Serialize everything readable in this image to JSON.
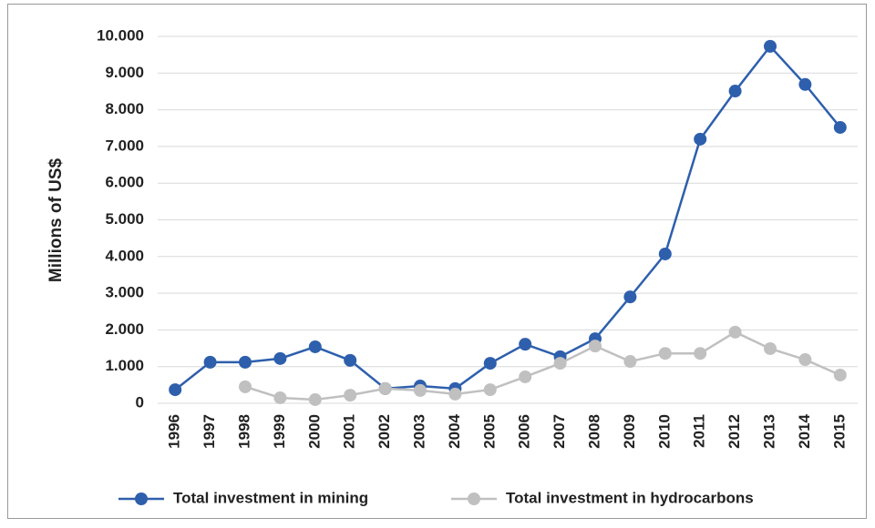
{
  "chart_data": {
    "type": "line",
    "y_label": "Millions of US$",
    "categories": [
      "1996",
      "1997",
      "1998",
      "1999",
      "2000",
      "2001",
      "2002",
      "2003",
      "2004",
      "2005",
      "2006",
      "2007",
      "2008",
      "2009",
      "2010",
      "2011",
      "2012",
      "2013",
      "2014",
      "2015"
    ],
    "series": [
      {
        "name": "Total investment in mining",
        "color": "#2e5fac",
        "values": [
          370,
          1120,
          1120,
          1220,
          1540,
          1170,
          400,
          470,
          400,
          1090,
          1610,
          1270,
          1760,
          2900,
          4070,
          7200,
          8510,
          9730,
          8690,
          7520
        ]
      },
      {
        "name": "Total investment in hydrocarbons",
        "color": "#c0c0c0",
        "values": [
          null,
          null,
          450,
          150,
          100,
          220,
          400,
          350,
          250,
          370,
          720,
          1090,
          1560,
          1140,
          1360,
          1360,
          1940,
          1490,
          1190,
          770
        ]
      }
    ],
    "ylim": [
      0,
      10000
    ],
    "yticks": [
      0,
      {
        "value": 1000,
        "label": "1.000"
      },
      {
        "value": 2000,
        "label": "2.000"
      },
      {
        "value": 3000,
        "label": "3.000"
      },
      {
        "value": 4000,
        "label": "4.000"
      },
      {
        "value": 5000,
        "label": "5.000"
      },
      {
        "value": 6000,
        "label": "6.000"
      },
      {
        "value": 7000,
        "label": "7.000"
      },
      {
        "value": 8000,
        "label": "8.000"
      },
      {
        "value": 9000,
        "label": "9.000"
      },
      {
        "value": 10000,
        "label": "10.000"
      }
    ],
    "grid": true
  }
}
